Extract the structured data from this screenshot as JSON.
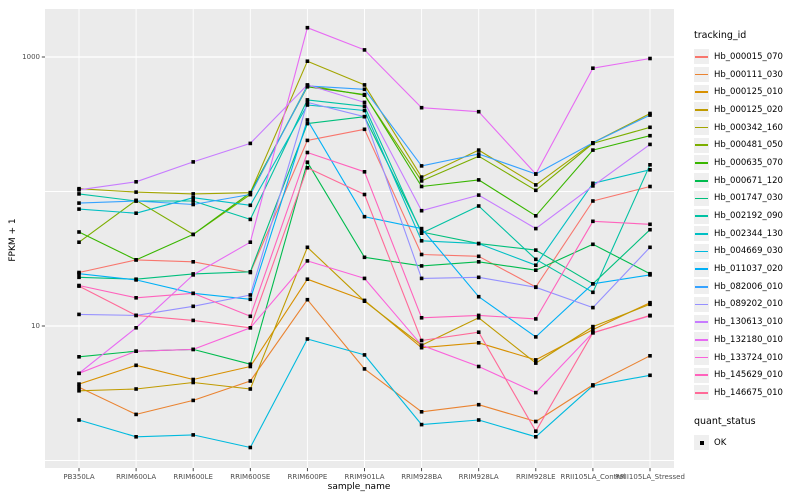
{
  "chart_data": {
    "type": "line",
    "title": "",
    "xlabel": "sample_name",
    "ylabel": "FPKM + 1",
    "y_scale": "log10",
    "x_categories": [
      "PB350LA",
      "RRIM600LA",
      "RRIM600LE",
      "RRIM600SE",
      "RRIM600PE",
      "RRIM901LA",
      "RRIM928BA",
      "RRIM928LA",
      "RRIM928LE",
      "RRII105LA_Control",
      "RRII105LA_Stressed"
    ],
    "y_tick_values": [
      10,
      1000
    ],
    "y_tick_labels": [
      "10",
      "1000"
    ],
    "y_gridline_values": [
      1,
      10,
      100,
      1000
    ],
    "ylim": [
      0.85,
      2200
    ],
    "legend_position": "right",
    "grid": true,
    "legend_title": "tracking_id",
    "series": [
      {
        "name": "Hb_000015_070",
        "color": "#F8766D",
        "values": [
          25,
          31,
          30,
          25,
          240,
          290,
          34,
          33,
          19.5,
          85,
          109
        ]
      },
      {
        "name": "Hb_000111_030",
        "color": "#EA8331",
        "values": [
          3.5,
          2.2,
          2.8,
          3.9,
          15.7,
          4.8,
          2.3,
          2.6,
          1.95,
          3.65,
          6.0
        ]
      },
      {
        "name": "Hb_000125_010",
        "color": "#D89000",
        "values": [
          3.7,
          5.1,
          4.0,
          5.0,
          22.3,
          15.5,
          6.9,
          7.5,
          5.6,
          9.4,
          14.9
        ]
      },
      {
        "name": "Hb_000125_020",
        "color": "#C09B00",
        "values": [
          3.3,
          3.4,
          3.8,
          3.4,
          38.5,
          15.3,
          7.2,
          11.5,
          5.3,
          9.9,
          14.5
        ]
      },
      {
        "name": "Hb_000342_160",
        "color": "#A3A500",
        "values": [
          105,
          99,
          96,
          98,
          930,
          620,
          128,
          203,
          112,
          230,
          380
        ]
      },
      {
        "name": "Hb_000481_050",
        "color": "#7CAE00",
        "values": [
          42,
          86,
          48,
          95,
          615,
          520,
          120,
          183,
          102,
          228,
          300
        ]
      },
      {
        "name": "Hb_000635_070",
        "color": "#39B600",
        "values": [
          50,
          31,
          48,
          98,
          600,
          525,
          109,
          122,
          66,
          203,
          260
        ]
      },
      {
        "name": "Hb_000671_120",
        "color": "#00BB4E",
        "values": [
          5.9,
          6.5,
          6.7,
          5.2,
          165,
          32.4,
          28,
          30,
          26,
          40.5,
          24.5
        ]
      },
      {
        "name": "Hb_001747_030",
        "color": "#00BF7D",
        "values": [
          23,
          22.3,
          24.4,
          25.3,
          320,
          360,
          50,
          41,
          36.7,
          20.6,
          52
        ]
      },
      {
        "name": "Hb_002192_090",
        "color": "#00C1A3",
        "values": [
          96,
          85,
          85,
          62,
          480,
          430,
          49,
          78,
          31.3,
          17.8,
          158
        ]
      },
      {
        "name": "Hb_002344_130",
        "color": "#00BFC4",
        "values": [
          74,
          69,
          90,
          79,
          440,
          400,
          43,
          41,
          28.3,
          115,
          145
        ]
      },
      {
        "name": "Hb_004669_030",
        "color": "#00BADE",
        "values": [
          2.0,
          1.5,
          1.55,
          1.25,
          8.0,
          6.1,
          1.85,
          2.0,
          1.5,
          3.6,
          4.3
        ]
      },
      {
        "name": "Hb_011037_020",
        "color": "#00B0F6",
        "values": [
          24.5,
          22,
          17.5,
          15.8,
          340,
          65,
          53,
          16.5,
          8.3,
          20.6,
          24
        ]
      },
      {
        "name": "Hb_082006_010",
        "color": "#35A2FF",
        "values": [
          82,
          85,
          80,
          95,
          610,
          575,
          155,
          190,
          135,
          230,
          370
        ]
      },
      {
        "name": "Hb_089202_010",
        "color": "#9590FF",
        "values": [
          12.2,
          12,
          14,
          17,
          460,
          360,
          22.6,
          23,
          19.4,
          13.7,
          38.5
        ]
      },
      {
        "name": "Hb_130613_010",
        "color": "#C77CFF",
        "values": [
          103,
          118,
          166,
          228,
          620,
          460,
          72,
          94,
          53,
          110,
          224
        ]
      },
      {
        "name": "Hb_132180_010",
        "color": "#E76BF3",
        "values": [
          4.45,
          9.7,
          24,
          42,
          1650,
          1130,
          420,
          392,
          135,
          825,
          975
        ]
      },
      {
        "name": "Hb_133724_010",
        "color": "#FA62DB",
        "values": [
          4.45,
          6.5,
          6.7,
          9.7,
          30.5,
          22.6,
          7.2,
          5.0,
          3.2,
          8.9,
          11.9
        ]
      },
      {
        "name": "Hb_145629_010",
        "color": "#FF62BC",
        "values": [
          20,
          16.2,
          17.5,
          11.8,
          195,
          140,
          11.5,
          12,
          11.3,
          60,
          57
        ]
      },
      {
        "name": "Hb_146675_010",
        "color": "#FF6A98",
        "values": [
          19.8,
          12,
          11,
          9.7,
          150,
          95,
          7.8,
          9.0,
          1.65,
          8.9,
          12
        ]
      }
    ],
    "quant_status": {
      "title": "quant_status",
      "items": [
        {
          "label": "OK",
          "glyph": "black-square"
        }
      ]
    },
    "colors": {
      "panel_bg": "#EBEBEB",
      "gridline": "#FFFFFF",
      "point": "#000000",
      "tick_text": "#4D4D4D",
      "legend_key_bg": "#EFEFEF"
    }
  }
}
